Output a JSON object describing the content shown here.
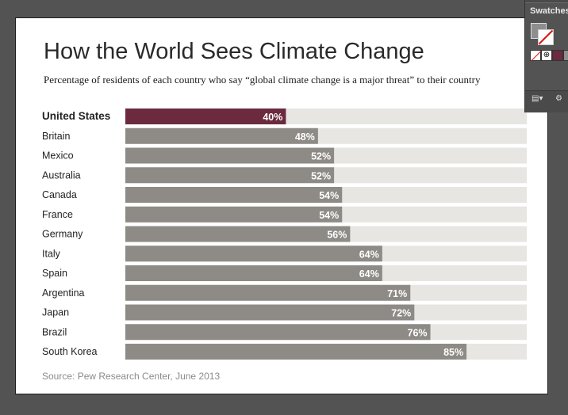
{
  "chart_data": {
    "type": "bar",
    "orientation": "horizontal",
    "title": "How the World Sees Climate Change",
    "subtitle": "Percentage of residents of each country who say “global climate change is a major threat” to their country",
    "categories": [
      "United States",
      "Britain",
      "Mexico",
      "Australia",
      "Canada",
      "France",
      "Germany",
      "Italy",
      "Spain",
      "Argentina",
      "Japan",
      "Brazil",
      "South Korea"
    ],
    "values": [
      40,
      48,
      52,
      52,
      54,
      54,
      56,
      64,
      64,
      71,
      72,
      76,
      85
    ],
    "value_labels": [
      "40%",
      "48%",
      "52%",
      "52%",
      "54%",
      "54%",
      "56%",
      "64%",
      "64%",
      "71%",
      "72%",
      "76%",
      "85%"
    ],
    "xlim": [
      0,
      100
    ],
    "highlight_category": "United States",
    "colors": {
      "highlight": "#6b2a3d",
      "bar": "#8e8b87",
      "track": "#e7e6e2"
    },
    "grid": false,
    "legend": "none",
    "source": "Source: Pew Research Center, June 2013"
  },
  "panel": {
    "title": "Swatches",
    "icons": [
      "fill-stroke-icon",
      "none-swatch-icon",
      "registration-swatch-icon",
      "library-menu-icon",
      "swatch-options-icon"
    ]
  }
}
